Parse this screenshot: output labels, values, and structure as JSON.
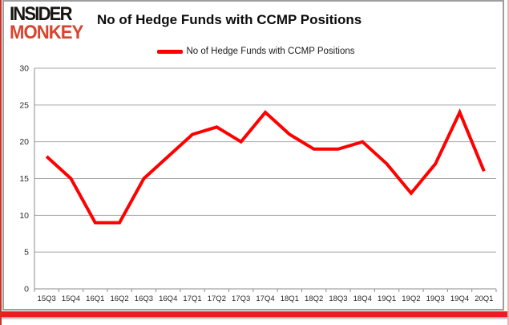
{
  "logo": {
    "line1": "INSIDER",
    "line2": "MONKEY",
    "line1_color": "#181512",
    "line2_color": "#d9442e"
  },
  "header": {
    "title": "No of Hedge Funds with CCMP Positions"
  },
  "legend": {
    "label": "No of Hedge Funds with CCMP Positions"
  },
  "chart_data": {
    "type": "line",
    "title": "No of Hedge Funds with CCMP Positions",
    "categories": [
      "15Q3",
      "15Q4",
      "16Q1",
      "16Q2",
      "16Q3",
      "16Q4",
      "17Q1",
      "17Q2",
      "17Q3",
      "17Q4",
      "18Q1",
      "18Q2",
      "18Q3",
      "18Q4",
      "19Q1",
      "19Q2",
      "19Q3",
      "19Q4",
      "20Q1"
    ],
    "series": [
      {
        "name": "No of Hedge Funds with CCMP Positions",
        "values": [
          18,
          15,
          9,
          9,
          15,
          18,
          21,
          22,
          20,
          24,
          21,
          19,
          19,
          20,
          17,
          13,
          17,
          24,
          16
        ],
        "color": "#fe0000",
        "line_width": 4
      }
    ],
    "xlabel": "",
    "ylabel": "",
    "ylim": [
      0,
      30
    ],
    "ytick_interval": 5,
    "yticks": [
      0,
      5,
      10,
      15,
      20,
      25,
      30
    ],
    "grid": true,
    "legend_position": "top",
    "gridline_color": "#a6a6a6",
    "axis_color": "#8c8c8c",
    "tick_label_color": "#2b2b2b"
  },
  "frame": {
    "bottom_bar_color": "#ed1b24",
    "border_color": "#9e9e9e"
  }
}
